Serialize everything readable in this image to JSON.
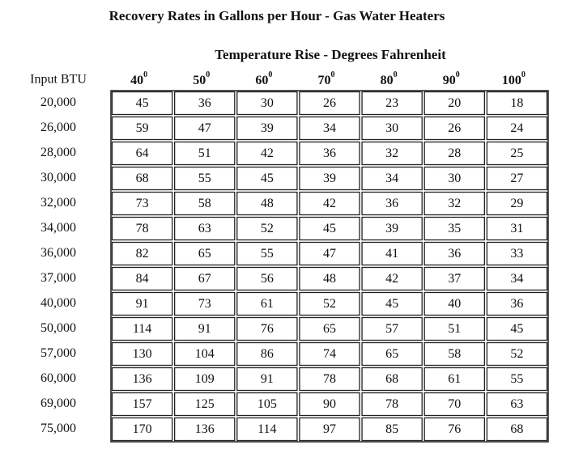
{
  "header": {
    "title": "Recovery Rates in Gallons per Hour - Gas Water Heaters",
    "subtitle": "Temperature Rise - Degrees Fahrenheit"
  },
  "table": {
    "row_header": "Input BTU",
    "columns": [
      {
        "value": "40",
        "sup": "0"
      },
      {
        "value": "50",
        "sup": "0"
      },
      {
        "value": "60",
        "sup": "0"
      },
      {
        "value": "70",
        "sup": "0"
      },
      {
        "value": "80",
        "sup": "0"
      },
      {
        "value": "90",
        "sup": "0"
      },
      {
        "value": "100",
        "sup": "0"
      }
    ],
    "row_labels": [
      "20,000",
      "26,000",
      "28,000",
      "30,000",
      "32,000",
      "34,000",
      "36,000",
      "37,000",
      "40,000",
      "50,000",
      "57,000",
      "60,000",
      "69,000",
      "75,000"
    ],
    "rows": [
      [
        45,
        36,
        30,
        26,
        23,
        20,
        18
      ],
      [
        59,
        47,
        39,
        34,
        30,
        26,
        24
      ],
      [
        64,
        51,
        42,
        36,
        32,
        28,
        25
      ],
      [
        68,
        55,
        45,
        39,
        34,
        30,
        27
      ],
      [
        73,
        58,
        48,
        42,
        36,
        32,
        29
      ],
      [
        78,
        63,
        52,
        45,
        39,
        35,
        31
      ],
      [
        82,
        65,
        55,
        47,
        41,
        36,
        33
      ],
      [
        84,
        67,
        56,
        48,
        42,
        37,
        34
      ],
      [
        91,
        73,
        61,
        52,
        45,
        40,
        36
      ],
      [
        114,
        91,
        76,
        65,
        57,
        51,
        45
      ],
      [
        130,
        104,
        86,
        74,
        65,
        58,
        52
      ],
      [
        136,
        109,
        91,
        78,
        68,
        61,
        55
      ],
      [
        157,
        125,
        105,
        90,
        78,
        70,
        63
      ],
      [
        170,
        136,
        114,
        97,
        85,
        76,
        68
      ]
    ]
  }
}
